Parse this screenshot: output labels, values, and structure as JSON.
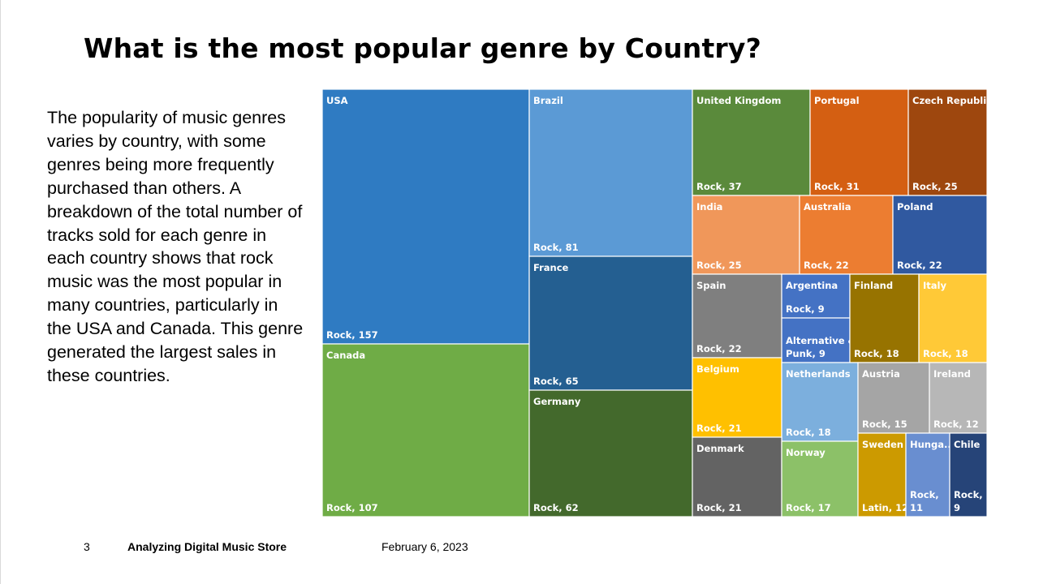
{
  "slide": {
    "title": "What is the most popular genre by Country?",
    "body": "The popularity of music genres varies by country, with some genres being more frequently purchased than others. A breakdown of the total number of tracks sold for each genre in each country shows that rock music was the most popular in many countries, particularly in the USA and Canada. This genre generated the largest sales in these countries.",
    "footer": {
      "page_number": "3",
      "presentation_name": "Analyzing Digital Music Store",
      "date": "February 6, 2023"
    }
  },
  "chart_data": {
    "type": "treemap",
    "title": "",
    "hierarchy": [
      "country",
      "genre"
    ],
    "value_label": "tracks sold",
    "nodes": [
      {
        "country": "USA",
        "genre": "Rock",
        "value": 157,
        "color": "#2f7bc2",
        "labels": [
          "Rock, 157"
        ]
      },
      {
        "country": "Canada",
        "genre": "Rock",
        "value": 107,
        "color": "#6fac46",
        "labels": [
          "Rock, 107"
        ]
      },
      {
        "country": "Brazil",
        "genre": "Rock",
        "value": 81,
        "color": "#5b9ad5",
        "labels": [
          "Rock, 81"
        ]
      },
      {
        "country": "France",
        "genre": "Rock",
        "value": 65,
        "color": "#245f91",
        "labels": [
          "Rock, 65"
        ]
      },
      {
        "country": "Germany",
        "genre": "Rock",
        "value": 62,
        "color": "#43692c",
        "labels": [
          "Rock, 62"
        ]
      },
      {
        "country": "United Kingdom",
        "genre": "Rock",
        "value": 37,
        "color": "#5a8a3b",
        "labels": [
          "Rock, 37"
        ]
      },
      {
        "country": "Portugal",
        "genre": "Rock",
        "value": 31,
        "color": "#d45f12",
        "labels": [
          "Rock, 31"
        ]
      },
      {
        "country": "Czech Republic",
        "genre": "Rock",
        "value": 25,
        "color": "#9e470e",
        "labels": [
          "Rock, 25"
        ]
      },
      {
        "country": "India",
        "genre": "Rock",
        "value": 25,
        "color": "#f0975a",
        "labels": [
          "Rock, 25"
        ]
      },
      {
        "country": "Australia",
        "genre": "Rock",
        "value": 22,
        "color": "#ec7d31",
        "labels": [
          "Rock, 22"
        ]
      },
      {
        "country": "Poland",
        "genre": "Rock",
        "value": 22,
        "color": "#3059a0",
        "labels": [
          "Rock, 22"
        ]
      },
      {
        "country": "Spain",
        "genre": "Rock",
        "value": 22,
        "color": "#7f7f7f",
        "labels": [
          "Rock, 22"
        ]
      },
      {
        "country": "Argentina",
        "genre": "Rock",
        "value": 9,
        "color": "#4472c4",
        "labels": [
          "Rock, 9"
        ]
      },
      {
        "country": "Argentina",
        "genre": "Alternative & Punk",
        "value": 9,
        "color": "#4472c4",
        "labels": [
          "Alternative &",
          "Punk, 9"
        ]
      },
      {
        "country": "Finland",
        "genre": "Rock",
        "value": 18,
        "color": "#977300",
        "labels": [
          "Rock, 18"
        ]
      },
      {
        "country": "Italy",
        "genre": "Rock",
        "value": 18,
        "color": "#ffc937",
        "labels": [
          "Rock, 18"
        ]
      },
      {
        "country": "Belgium",
        "genre": "Rock",
        "value": 21,
        "color": "#ffc000",
        "labels": [
          "Rock, 21"
        ]
      },
      {
        "country": "Netherlands",
        "genre": "Rock",
        "value": 18,
        "color": "#7cafdd",
        "labels": [
          "Rock, 18"
        ]
      },
      {
        "country": "Austria",
        "genre": "Rock",
        "value": 15,
        "color": "#a5a5a5",
        "labels": [
          "Rock, 15"
        ]
      },
      {
        "country": "Ireland",
        "genre": "Rock",
        "value": 12,
        "color": "#b7b7b7",
        "labels": [
          "Rock, 12"
        ]
      },
      {
        "country": "Denmark",
        "genre": "Rock",
        "value": 21,
        "color": "#636363",
        "labels": [
          "Rock, 21"
        ]
      },
      {
        "country": "Norway",
        "genre": "Rock",
        "value": 17,
        "color": "#8cc168",
        "labels": [
          "Rock, 17"
        ]
      },
      {
        "country": "Sweden",
        "genre": "Latin",
        "value": 12,
        "color": "#cc9a00",
        "labels": [
          "Latin, 12"
        ]
      },
      {
        "country": "Hunga...",
        "genre": "Rock",
        "value": 11,
        "color": "#698ed0",
        "labels": [
          "Rock,",
          "11"
        ]
      },
      {
        "country": "Chile",
        "genre": "Rock",
        "value": 9,
        "color": "#264478",
        "labels": [
          "Rock,",
          "9"
        ]
      }
    ]
  }
}
